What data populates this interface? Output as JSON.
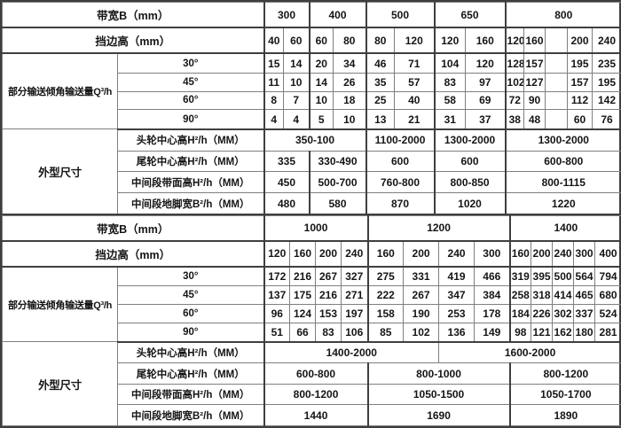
{
  "colors": {
    "border_thin": "#7f7f7f",
    "border_thick": "#3f3f3f",
    "text": "#151515",
    "background": "#ffffff"
  },
  "top_section": {
    "bandwidth_row": {
      "label": "带宽B（mm）",
      "groups": [
        {
          "text": "300",
          "span": 2
        },
        {
          "text": "400",
          "span": 2
        },
        {
          "text": "500",
          "span": 2
        },
        {
          "text": "650",
          "span": 2
        },
        {
          "text": "800",
          "span": 5
        }
      ]
    },
    "edge_row": {
      "label": "挡边高（mm）",
      "cells": [
        "40",
        "60",
        "60",
        "80",
        "80",
        "120",
        "120",
        "160",
        "120",
        "160",
        "",
        "200",
        "240"
      ]
    },
    "capacity_label": "部分输送倾角输送量Q³/h",
    "angle_rows": [
      {
        "label": "30°",
        "cells": [
          "15",
          "14",
          "20",
          "34",
          "46",
          "71",
          "104",
          "120",
          "128",
          "157",
          "",
          "195",
          "235"
        ]
      },
      {
        "label": "45°",
        "cells": [
          "11",
          "10",
          "14",
          "26",
          "35",
          "57",
          "83",
          "97",
          "102",
          "127",
          "",
          "157",
          "195"
        ]
      },
      {
        "label": "60°",
        "cells": [
          "8",
          "7",
          "10",
          "18",
          "25",
          "40",
          "58",
          "69",
          "72",
          "90",
          "",
          "112",
          "142"
        ]
      },
      {
        "label": "90°",
        "cells": [
          "4",
          "4",
          "5",
          "10",
          "13",
          "21",
          "31",
          "37",
          "38",
          "48",
          "",
          "60",
          "76"
        ]
      }
    ],
    "dimensions_label": "外型尺寸",
    "dimension_rows": [
      {
        "label": "头轮中心高H²/h（MM）",
        "cells": [
          {
            "text": "350-100",
            "span": 4
          },
          {
            "text": "1100-2000",
            "span": 2
          },
          {
            "text": "1300-2000",
            "span": 2
          },
          {
            "text": "1300-2000",
            "span": 5
          }
        ]
      },
      {
        "label": "尾轮中心高H²/h（MM）",
        "cells": [
          {
            "text": "335",
            "span": 2
          },
          {
            "text": "330-490",
            "span": 2
          },
          {
            "text": "600",
            "span": 2
          },
          {
            "text": "600",
            "span": 2
          },
          {
            "text": "600-800",
            "span": 5
          }
        ]
      },
      {
        "label": "中间段带面高H²/h（MM）",
        "cells": [
          {
            "text": "450",
            "span": 2
          },
          {
            "text": "500-700",
            "span": 2
          },
          {
            "text": "760-800",
            "span": 2
          },
          {
            "text": "800-850",
            "span": 2
          },
          {
            "text": "800-1115",
            "span": 5
          }
        ]
      },
      {
        "label": "中间段地脚宽B²/h（MM）",
        "cells": [
          {
            "text": "480",
            "span": 2
          },
          {
            "text": "580",
            "span": 2
          },
          {
            "text": "870",
            "span": 2
          },
          {
            "text": "1020",
            "span": 2
          },
          {
            "text": "1220",
            "span": 5
          }
        ]
      }
    ]
  },
  "bottom_section": {
    "bandwidth_row": {
      "label": "带宽B（mm）",
      "groups": [
        {
          "text": "1000",
          "span": 4
        },
        {
          "text": "1200",
          "span": 4
        },
        {
          "text": "1400",
          "span": 5
        }
      ]
    },
    "edge_row": {
      "label": "挡边高（mm）",
      "cells": [
        "120",
        "160",
        "200",
        "240",
        "160",
        "200",
        "240",
        "300",
        "160",
        "200",
        "240",
        "300",
        "400"
      ]
    },
    "capacity_label": "部分输送倾角输送量Q³/h",
    "angle_rows": [
      {
        "label": "30°",
        "cells": [
          "172",
          "216",
          "267",
          "327",
          "275",
          "331",
          "419",
          "466",
          "319",
          "395",
          "500",
          "564",
          "794"
        ]
      },
      {
        "label": "45°",
        "cells": [
          "137",
          "175",
          "216",
          "271",
          "222",
          "267",
          "347",
          "384",
          "258",
          "318",
          "414",
          "465",
          "680"
        ]
      },
      {
        "label": "60°",
        "cells": [
          "96",
          "124",
          "153",
          "197",
          "158",
          "190",
          "253",
          "178",
          "184",
          "226",
          "302",
          "337",
          "524"
        ]
      },
      {
        "label": "90°",
        "cells": [
          "51",
          "66",
          "83",
          "106",
          "85",
          "102",
          "136",
          "149",
          "98",
          "121",
          "162",
          "180",
          "281"
        ]
      }
    ],
    "dimensions_label": "外型尺寸",
    "dimension_rows": [
      {
        "label": "头轮中心高H²/h（MM）",
        "cells": [
          {
            "text": "1400-2000",
            "span": 6
          },
          {
            "text": "1600-2000",
            "span": 7
          }
        ]
      },
      {
        "label": "尾轮中心高H²/h（MM）",
        "cells": [
          {
            "text": "600-800",
            "span": 4
          },
          {
            "text": "800-1000",
            "span": 4
          },
          {
            "text": "800-1200",
            "span": 5
          }
        ]
      },
      {
        "label": "中间段带面高H²/h（MM）",
        "cells": [
          {
            "text": "800-1200",
            "span": 4
          },
          {
            "text": "1050-1500",
            "span": 4
          },
          {
            "text": "1050-1700",
            "span": 5
          }
        ]
      },
      {
        "label": "中间段地脚宽B²/h（MM）",
        "cells": [
          {
            "text": "1440",
            "span": 4
          },
          {
            "text": "1690",
            "span": 4
          },
          {
            "text": "1890",
            "span": 5
          }
        ]
      }
    ]
  }
}
